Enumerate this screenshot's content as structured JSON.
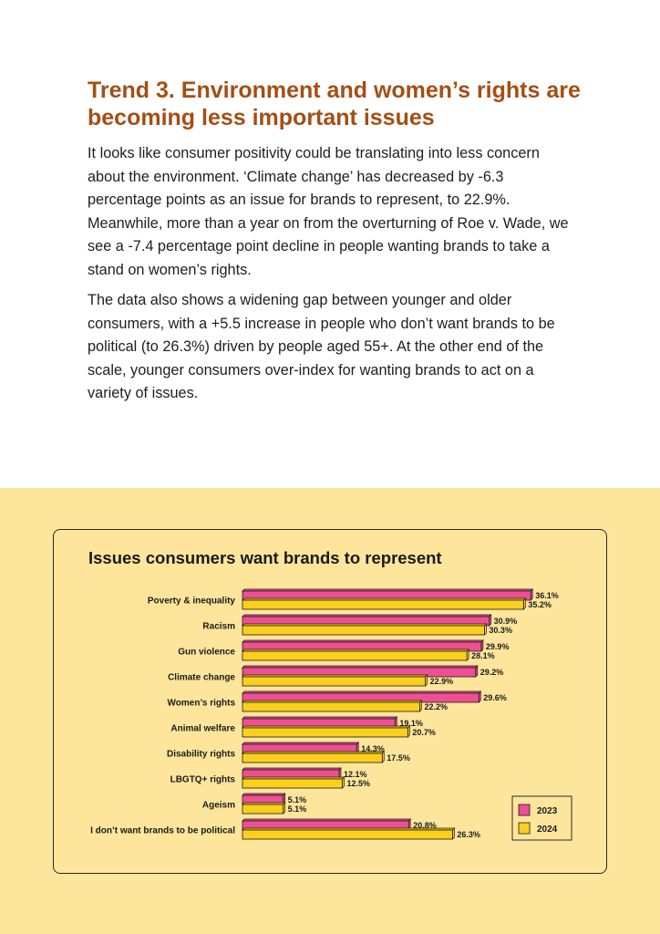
{
  "heading": "Trend 3. Environment and women’s rights are becoming less important issues",
  "paragraphs": [
    "It looks like consumer positivity could be translating into less concern about the environment. ‘Climate change’ has decreased by -6.3 percentage points as an issue for brands to represent, to 22.9%. Meanwhile, more than a year on from the overturning of Roe v. Wade, we see a -7.4 percentage point decline in people wanting brands to take a stand on women’s rights.",
    "The data also shows a widening gap between younger and older consumers, with a +5.5 increase in people who don’t want brands to be political (to 26.3%) driven by people aged 55+. At the other end of the scale, younger consumers over-index for wanting brands to act on a variety of issues."
  ],
  "colors": {
    "heading": "#a54e14",
    "band": "#fde59c",
    "series_2023": "#ef4f93",
    "series_2024": "#fbcf1e"
  },
  "chart_data": {
    "type": "bar",
    "orientation": "horizontal",
    "title": "Issues consumers want brands to represent",
    "categories": [
      "Poverty & inequality",
      "Racism",
      "Gun violence",
      "Climate change",
      "Women’s rights",
      "Animal welfare",
      "Disability rights",
      "LBGTQ+ rights",
      "Ageism",
      "I don’t want brands to be political"
    ],
    "series": [
      {
        "name": "2023",
        "values": [
          36.1,
          30.9,
          29.9,
          29.2,
          29.6,
          19.1,
          14.3,
          12.1,
          5.1,
          20.8
        ],
        "labels": [
          "36.1%",
          "30.9%",
          "29.9%",
          "29.2%",
          "29.6%",
          "19.1%",
          "14.3%",
          "12.1%",
          "5.1%",
          "20.8%"
        ]
      },
      {
        "name": "2024",
        "values": [
          35.2,
          30.3,
          28.1,
          22.9,
          22.2,
          20.7,
          17.5,
          12.5,
          5.1,
          26.3
        ],
        "labels": [
          "35.2%",
          "30.3%",
          "28.1%",
          "22.9%",
          "22.2%",
          "20.7%",
          "17.5%",
          "12.5%",
          "5.1%",
          "26.3%"
        ]
      }
    ],
    "unit": "%",
    "xlim": [
      0,
      40
    ],
    "legend": "bottom-right"
  }
}
